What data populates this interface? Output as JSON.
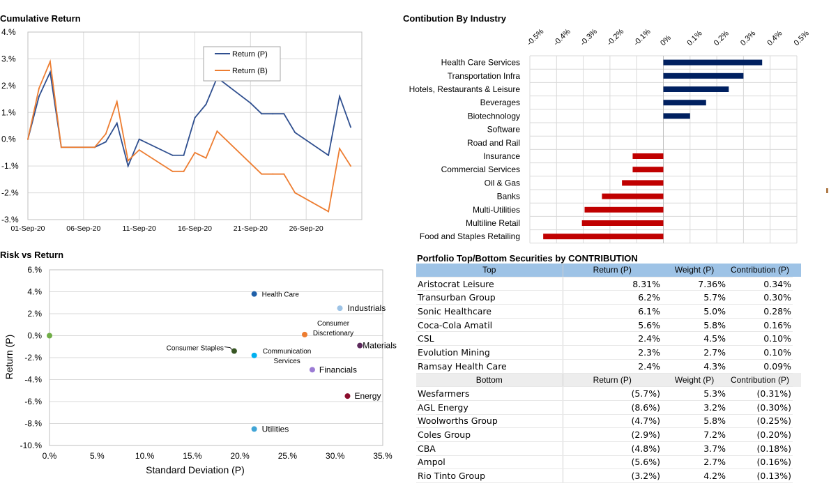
{
  "titles": {
    "cumulative": "Cumulative Return",
    "industry": "Contibution By Industry",
    "risk": "Risk vs Return",
    "table": "Portfolio Top/Bottom Securities by CONTRIBUTION"
  },
  "chart_data": [
    {
      "type": "line",
      "title": "Cumulative Return",
      "x": [
        "01-Sep-20",
        "02-Sep-20",
        "03-Sep-20",
        "04-Sep-20",
        "07-Sep-20",
        "08-Sep-20",
        "09-Sep-20",
        "10-Sep-20",
        "11-Sep-20",
        "14-Sep-20",
        "15-Sep-20",
        "16-Sep-20",
        "17-Sep-20",
        "18-Sep-20",
        "21-Sep-20",
        "22-Sep-20",
        "23-Sep-20",
        "24-Sep-20",
        "25-Sep-20",
        "28-Sep-20",
        "29-Sep-20",
        "30-Sep-20"
      ],
      "x_positions": [
        0,
        1,
        2,
        3,
        6,
        7,
        8,
        9,
        10,
        13,
        14,
        15,
        16,
        17,
        20,
        21,
        22,
        23,
        24,
        27,
        28,
        29
      ],
      "x_tick_labels": [
        "01-Sep-20",
        "06-Sep-20",
        "11-Sep-20",
        "16-Sep-20",
        "21-Sep-20",
        "26-Sep-20"
      ],
      "x_tick_positions": [
        0,
        5,
        10,
        15,
        20,
        25
      ],
      "x_range": [
        0,
        30
      ],
      "y_tick_labels": [
        "4.%",
        "3.%",
        "2.%",
        "1.%",
        "0.%",
        "-1.%",
        "-2.%",
        "-3.%"
      ],
      "y_tick_values": [
        4,
        3,
        2,
        1,
        0,
        -1,
        -2,
        -3
      ],
      "ylim": [
        -3,
        4
      ],
      "grid": true,
      "legend_position": "top-center",
      "series": [
        {
          "name": "Return (P)",
          "color": "#2f4f8f",
          "values": [
            0,
            1.6,
            2.5,
            -0.3,
            -0.3,
            -0.1,
            0.6,
            -1.0,
            0.0,
            -0.6,
            -0.6,
            0.8,
            1.3,
            2.3,
            1.35,
            0.95,
            0.95,
            0.95,
            0.25,
            -0.6,
            1.6,
            0.45
          ]
        },
        {
          "name": "Return (B)",
          "color": "#ed7d31",
          "values": [
            0,
            1.9,
            2.9,
            -0.3,
            -0.3,
            0.2,
            1.4,
            -0.8,
            -0.4,
            -1.2,
            -1.2,
            -0.5,
            -0.7,
            0.3,
            -0.9,
            -1.3,
            -1.3,
            -1.3,
            -2.0,
            -2.7,
            -0.35,
            -1.0
          ]
        }
      ]
    },
    {
      "type": "bar",
      "orientation": "horizontal",
      "title": "Contibution By Industry",
      "categories": [
        "Health Care Services",
        "Transportation Infra",
        "Hotels, Restaurants & Leisure",
        "Beverages",
        "Biotechnology",
        "Software",
        "Road and Rail",
        "Insurance",
        "Commercial Services",
        "Oil & Gas",
        "Banks",
        "Multi-Utilities",
        "Multiline Retail",
        "Food and Staples Retailing"
      ],
      "values": [
        0.37,
        0.3,
        0.245,
        0.16,
        0.1,
        0,
        0,
        -0.115,
        -0.115,
        -0.155,
        -0.23,
        -0.295,
        -0.305,
        -0.45
      ],
      "bar_colors": {
        "positive": "#002060",
        "negative": "#c00000"
      },
      "x_tick_labels": [
        "-0.5%",
        "-0.4%",
        "-0.3%",
        "-0.2%",
        "-0.1%",
        "0%",
        "0.1%",
        "0.2%",
        "0.3%",
        "0.4%",
        "0.5%"
      ],
      "x_tick_values": [
        -0.5,
        -0.4,
        -0.3,
        -0.2,
        -0.1,
        0,
        0.1,
        0.2,
        0.3,
        0.4,
        0.5
      ],
      "xlim": [
        -0.5,
        0.5
      ],
      "grid": true
    },
    {
      "type": "scatter",
      "title": "Risk vs Return",
      "xlabel": "Standard Deviation (P)",
      "ylabel": "Return (P)",
      "xlim": [
        0,
        35
      ],
      "ylim": [
        -10,
        6
      ],
      "x_tick_labels": [
        "0.%",
        "5.%",
        "10.%",
        "15.%",
        "20.%",
        "25.%",
        "30.%",
        "35.%"
      ],
      "x_tick_values": [
        0,
        5,
        10,
        15,
        20,
        25,
        30,
        35
      ],
      "y_tick_labels": [
        "6.%",
        "4.%",
        "2.%",
        "0.%",
        "-2.%",
        "-4.%",
        "-6.%",
        "-8.%",
        "-10.%"
      ],
      "y_tick_values": [
        6,
        4,
        2,
        0,
        -2,
        -4,
        -6,
        -8,
        -10
      ],
      "grid": true,
      "points": [
        {
          "label": "",
          "x": 0.0,
          "y": 0.0,
          "color": "#70ad47"
        },
        {
          "label": "Health Care",
          "x": 21.5,
          "y": 3.8,
          "color": "#1f5fa8"
        },
        {
          "label": "Industrials",
          "x": 30.5,
          "y": 2.5,
          "color": "#9dc3e6"
        },
        {
          "label": "Consumer Discretionary",
          "x": 26.8,
          "y": 0.1,
          "color": "#ed7d31"
        },
        {
          "label": "Materials",
          "x": 32.6,
          "y": -0.9,
          "color": "#5c2a5c"
        },
        {
          "label": "Consumer Staples",
          "x": 19.4,
          "y": -1.4,
          "color": "#375623"
        },
        {
          "label": "Communication Services",
          "x": 21.5,
          "y": -1.8,
          "color": "#00b0f0"
        },
        {
          "label": "Financials",
          "x": 27.6,
          "y": -3.1,
          "color": "#9b7bd4"
        },
        {
          "label": "Energy",
          "x": 31.3,
          "y": -5.5,
          "color": "#8b0d2c"
        },
        {
          "label": "Utilities",
          "x": 21.5,
          "y": -8.5,
          "color": "#41a5d6"
        }
      ]
    }
  ],
  "table": {
    "top_header": [
      "Top",
      "Return (P)",
      "Weight (P)",
      "Contribution (P)"
    ],
    "top_rows": [
      [
        "Aristocrat Leisure",
        "8.31%",
        "7.36%",
        "0.34%"
      ],
      [
        "Transurban Group",
        "6.2%",
        "5.7%",
        "0.30%"
      ],
      [
        "Sonic Healthcare",
        "6.1%",
        "5.0%",
        "0.28%"
      ],
      [
        "Coca-Cola Amatil",
        "5.6%",
        "5.8%",
        "0.16%"
      ],
      [
        "CSL",
        "2.4%",
        "4.5%",
        "0.10%"
      ],
      [
        "Evolution Mining",
        "2.3%",
        "2.7%",
        "0.10%"
      ],
      [
        "Ramsay Health Care",
        "2.4%",
        "4.3%",
        "0.09%"
      ]
    ],
    "bottom_header": [
      "Bottom",
      "Return (P)",
      "Weight (P)",
      "Contribution (P)"
    ],
    "bottom_rows": [
      [
        "Wesfarmers",
        "(5.7%)",
        "5.3%",
        "(0.31%)"
      ],
      [
        "AGL Energy",
        "(8.6%)",
        "3.2%",
        "(0.30%)"
      ],
      [
        "Woolworths Group",
        "(4.7%)",
        "5.8%",
        "(0.25%)"
      ],
      [
        "Coles Group",
        "(2.9%)",
        "7.2%",
        "(0.20%)"
      ],
      [
        "CBA",
        "(4.8%)",
        "3.7%",
        "(0.18%)"
      ],
      [
        "Ampol",
        "(5.6%)",
        "2.7%",
        "(0.16%)"
      ],
      [
        "Rio Tinto Group",
        "(3.2%)",
        "4.2%",
        "(0.13%)"
      ]
    ]
  }
}
